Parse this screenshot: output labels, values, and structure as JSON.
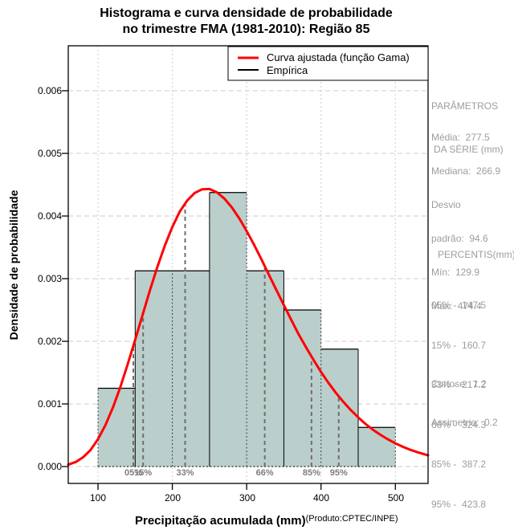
{
  "title": {
    "line1": "Histograma e curva densidade de probabilidade",
    "line2": "no trimestre FMA (1981-2010): Região 85"
  },
  "legend": {
    "items": [
      {
        "label": "Curva ajustada (função Gama)",
        "color": "#ff0000"
      },
      {
        "label": "Empírica",
        "color": "#000000"
      }
    ]
  },
  "side_panel": {
    "params_header_line1": "PARÂMETROS",
    "params_header_line2": "DA SÉRIE (mm)",
    "stats_lines": [
      "Média:  277.5",
      "Mediana:  266.9",
      "Desvio",
      "padrão:  94.6",
      "Mín:  129.9",
      "Máx:  474.4"
    ],
    "percentis_header": "PERCENTIS(mm)",
    "percentis_lines": [
      "05% -  147.5",
      "15% -  160.7",
      "33% -  217.2",
      "66% -  324.3",
      "85% -  387.2",
      "95% -  423.8"
    ],
    "curtose": "Curtose:  1.2",
    "assimetria": "Assimetria:  0.2"
  },
  "chart_data": {
    "type": "bar",
    "subtype": "histogram_with_density_curve",
    "title": "Histograma e curva densidade de probabilidade no trimestre FMA (1981-2010): Região 85",
    "xlabel": "Precipitação acumulada (mm)",
    "xlabel_note": "(Produto:CPTEC/INPE)",
    "ylabel": "Densidade de probabilidade",
    "xlim": [
      60,
      544
    ],
    "ylim": [
      0,
      0.00672
    ],
    "x_ticks": [
      100,
      200,
      300,
      400,
      500
    ],
    "x_tick_labels": [
      "100",
      "200",
      "300",
      "400",
      "500"
    ],
    "y_ticks": [
      0,
      0.001,
      0.002,
      0.003,
      0.004,
      0.005,
      0.006
    ],
    "y_tick_labels": [
      "0.000",
      "0.001",
      "0.002",
      "0.003",
      "0.004",
      "0.005",
      "0.006"
    ],
    "grid": true,
    "legend_position": "top-right",
    "histogram": {
      "bin_edges": [
        100,
        150,
        200,
        250,
        300,
        350,
        400,
        450,
        500
      ],
      "densities": [
        0.00125,
        0.003125,
        0.003125,
        0.004375,
        0.003125,
        0.0025,
        0.001875,
        0.000625
      ]
    },
    "gamma_curve": {
      "shape": 8.6,
      "scale": 32.25,
      "points": [
        [
          60,
          3.1e-05
        ],
        [
          70,
          7.3e-05
        ],
        [
          80,
          0.000149
        ],
        [
          90,
          0.000266
        ],
        [
          100,
          0.000437
        ],
        [
          110,
          0.000663
        ],
        [
          120,
          0.00094
        ],
        [
          130,
          0.001268
        ],
        [
          140,
          0.001633
        ],
        [
          150,
          0.002023
        ],
        [
          160,
          0.002423
        ],
        [
          170,
          0.002819
        ],
        [
          180,
          0.003194
        ],
        [
          190,
          0.00353
        ],
        [
          200,
          0.003826
        ],
        [
          210,
          0.00407
        ],
        [
          220,
          0.004248
        ],
        [
          230,
          0.004368
        ],
        [
          240,
          0.004427
        ],
        [
          250,
          0.004431
        ],
        [
          260,
          0.004378
        ],
        [
          270,
          0.004278
        ],
        [
          280,
          0.004138
        ],
        [
          290,
          0.003963
        ],
        [
          300,
          0.00376
        ],
        [
          310,
          0.00354
        ],
        [
          320,
          0.003304
        ],
        [
          330,
          0.00306
        ],
        [
          340,
          0.002817
        ],
        [
          350,
          0.00258
        ],
        [
          360,
          0.002341
        ],
        [
          370,
          0.00211
        ],
        [
          380,
          0.0019
        ],
        [
          390,
          0.0017
        ],
        [
          400,
          0.00151
        ],
        [
          410,
          0.001336
        ],
        [
          420,
          0.001177
        ],
        [
          430,
          0.001033
        ],
        [
          440,
          0.000902
        ],
        [
          450,
          0.000786
        ],
        [
          460,
          0.00068
        ],
        [
          470,
          0.000587
        ],
        [
          480,
          0.000506
        ],
        [
          490,
          0.000434
        ],
        [
          500,
          0.000371
        ],
        [
          510,
          0.000317
        ],
        [
          520,
          0.000268
        ],
        [
          530,
          0.000228
        ],
        [
          540,
          0.000193
        ],
        [
          544,
          0.00018
        ]
      ]
    },
    "percentile_lines": [
      {
        "label": "05%",
        "x": 147.5,
        "curve_y": 0.00192
      },
      {
        "label": "15%",
        "x": 160.7,
        "curve_y": 0.00245
      },
      {
        "label": "33%",
        "x": 217.2,
        "curve_y": 0.0042
      },
      {
        "label": "66%",
        "x": 324.3,
        "curve_y": 0.00321
      },
      {
        "label": "85%",
        "x": 387.2,
        "curve_y": 0.00175
      },
      {
        "label": "95%",
        "x": 423.8,
        "curve_y": 0.00112
      }
    ],
    "colors": {
      "bar_fill": "#bacecb",
      "bar_border": "#000000",
      "curve": "#ff0000",
      "grid": "#cccccc",
      "dotted_edge": "#3c3c3c",
      "percentile_line": "#6f6f6f",
      "percentile_label": "#7d7d7d",
      "panel_text": "#9d9d9d"
    }
  }
}
